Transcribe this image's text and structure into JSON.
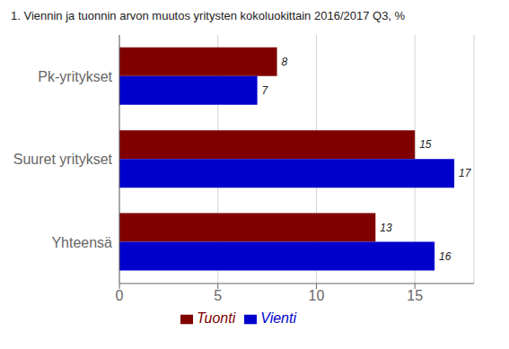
{
  "chart_data": {
    "type": "bar",
    "orientation": "horizontal",
    "title": "1. Viennin ja tuonnin arvon muutos yritysten kokoluokittain 2016/2017 Q3, %",
    "categories": [
      "Pk-yritykset",
      "Suuret yritykset",
      "Yhteensä"
    ],
    "series": [
      {
        "name": "Tuonti",
        "color": "#800000",
        "values": [
          8,
          15,
          13
        ]
      },
      {
        "name": "Vienti",
        "color": "#0000CC",
        "values": [
          7,
          17,
          16
        ]
      }
    ],
    "xlim": [
      0,
      18
    ],
    "xticks": [
      0,
      5,
      10,
      15
    ],
    "grid": true,
    "legend": "bottom",
    "data_labels": true
  }
}
